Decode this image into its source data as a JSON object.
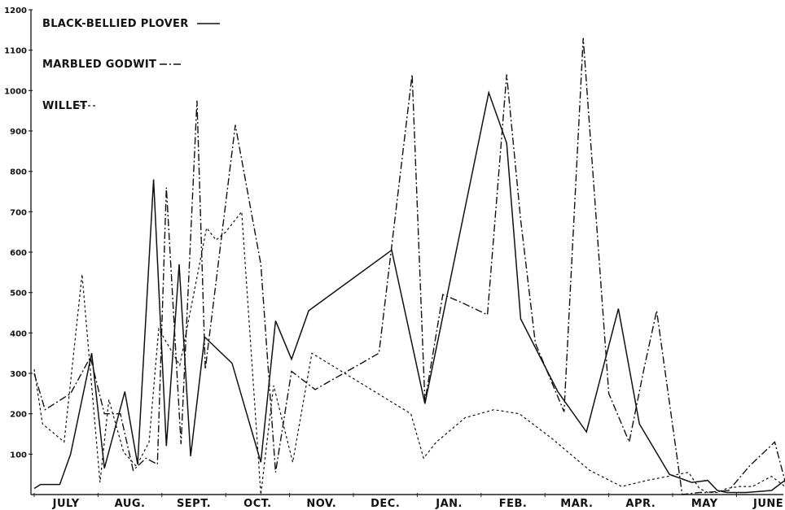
{
  "chart_data": {
    "type": "line",
    "title": "",
    "xlabel": "",
    "ylabel": "",
    "ylim": [
      0,
      1200
    ],
    "y_ticks": [
      "100",
      "200",
      "300",
      "400",
      "500",
      "600",
      "700",
      "800",
      "900",
      "1000",
      "1100",
      "1200"
    ],
    "x_ticks": [
      "JULY",
      "AUG.",
      "SEPT.",
      "OCT.",
      "NOV.",
      "DEC.",
      "JAN.",
      "FEB.",
      "MAR.",
      "APR.",
      "MAY",
      "JUNE"
    ],
    "x_scale": "months (Jul=0 … Jun=12)",
    "grid": false,
    "legend_position": "top-left",
    "series": [
      {
        "name": "BLACK-BELLIED PLOVER",
        "style": "solid",
        "x": [
          0.0,
          0.1,
          0.4,
          0.57,
          0.9,
          1.1,
          1.42,
          1.62,
          1.87,
          2.07,
          2.27,
          2.45,
          2.67,
          3.1,
          3.55,
          3.78,
          4.03,
          4.3,
          5.6,
          6.12,
          7.12,
          7.4,
          7.62,
          8.2,
          8.65,
          9.15,
          9.48,
          9.95,
          10.3,
          10.55,
          10.7,
          10.85,
          11.15,
          11.55,
          11.8,
          11.95
        ],
        "values": [
          15,
          25,
          25,
          100,
          350,
          65,
          255,
          75,
          780,
          120,
          570,
          95,
          390,
          325,
          80,
          430,
          335,
          455,
          605,
          225,
          995,
          870,
          435,
          255,
          155,
          460,
          175,
          50,
          30,
          35,
          10,
          5,
          5,
          10,
          40,
          20
        ]
      },
      {
        "name": "MARBLED GODWIT",
        "style": "dash-dot",
        "x": [
          0.0,
          0.17,
          0.57,
          0.88,
          1.1,
          1.35,
          1.55,
          1.75,
          1.93,
          2.07,
          2.3,
          2.55,
          2.68,
          3.15,
          3.55,
          3.78,
          4.03,
          4.4,
          5.4,
          5.92,
          6.12,
          6.4,
          6.7,
          7.1,
          7.4,
          7.62,
          7.85,
          8.3,
          8.6,
          9.0,
          9.32,
          9.55,
          9.75,
          10.15,
          10.42,
          10.52,
          10.88,
          11.2,
          11.6,
          11.8,
          11.95
        ],
        "values": [
          300,
          210,
          250,
          340,
          200,
          200,
          60,
          90,
          75,
          760,
          125,
          975,
          310,
          915,
          570,
          55,
          305,
          260,
          350,
          1040,
          230,
          495,
          475,
          445,
          1040,
          680,
          375,
          205,
          1130,
          250,
          130,
          310,
          455,
          0,
          5,
          5,
          10,
          70,
          130,
          10,
          20
        ]
      },
      {
        "name": "WILLET",
        "style": "dashed",
        "x": [
          0.0,
          0.13,
          0.47,
          0.75,
          1.03,
          1.17,
          1.4,
          1.6,
          1.8,
          1.95,
          2.28,
          2.7,
          2.85,
          3.0,
          3.25,
          3.55,
          3.75,
          4.05,
          4.35,
          5.9,
          6.1,
          6.3,
          6.75,
          7.2,
          7.6,
          8.1,
          8.7,
          9.2,
          9.6,
          10.25,
          10.42,
          10.55,
          10.7,
          10.85,
          11.05,
          11.25,
          11.55,
          11.8,
          11.95
        ],
        "values": [
          310,
          175,
          130,
          545,
          30,
          235,
          105,
          70,
          130,
          410,
          320,
          660,
          630,
          650,
          700,
          0,
          270,
          80,
          350,
          200,
          90,
          130,
          190,
          210,
          200,
          140,
          60,
          20,
          35,
          55,
          15,
          5,
          5,
          15,
          20,
          20,
          45,
          15,
          60
        ]
      }
    ]
  }
}
